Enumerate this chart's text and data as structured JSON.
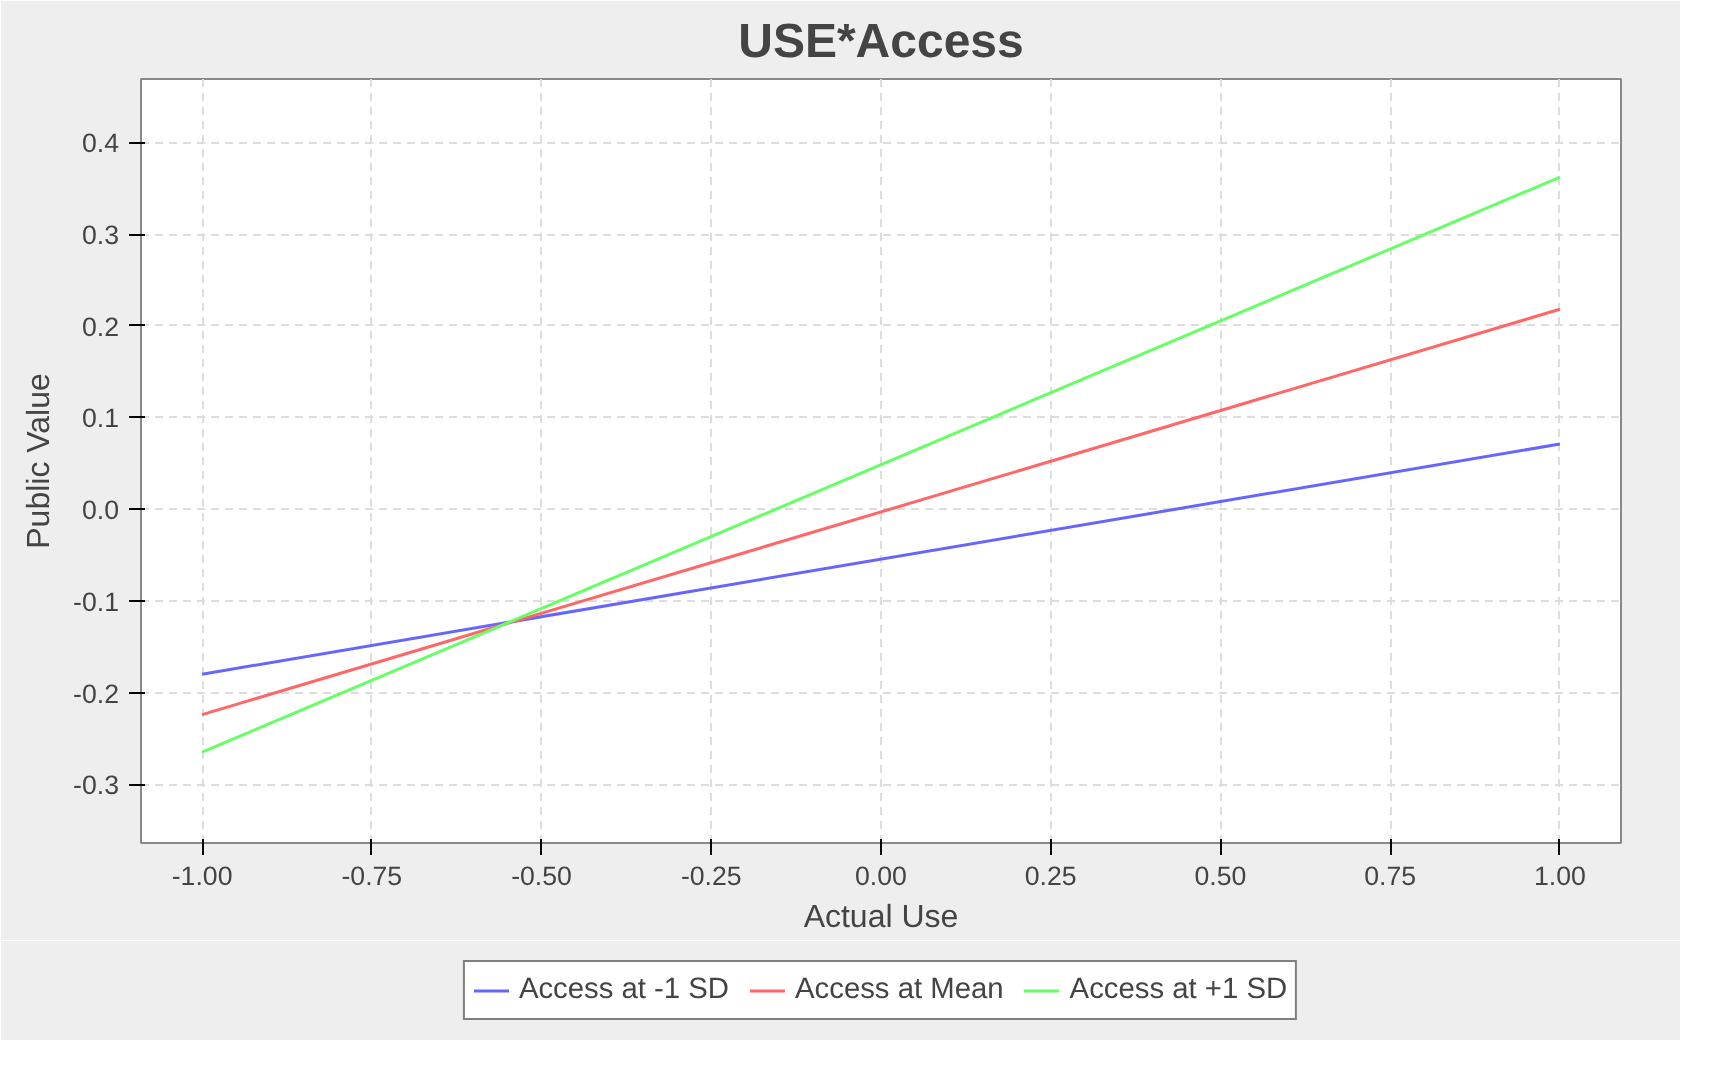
{
  "chart_data": {
    "type": "line",
    "title": "USE*Access",
    "xlabel": "Actual Use",
    "ylabel": "Public Value",
    "x": [
      -1.0,
      1.0
    ],
    "series": [
      {
        "name": "Access at -1 SD",
        "color": "#6666ff",
        "values": [
          -0.18,
          0.071
        ]
      },
      {
        "name": "Access at Mean",
        "color": "#ff6666",
        "values": [
          -0.224,
          0.218
        ]
      },
      {
        "name": "Access at +1 SD",
        "color": "#66ff66",
        "values": [
          -0.265,
          0.362
        ]
      }
    ],
    "xlim": [
      -1.09,
      1.09
    ],
    "ylim": [
      -0.364,
      0.469
    ],
    "xticks": [
      {
        "value": -1,
        "label": "-1.00"
      },
      {
        "value": -0.75,
        "label": "-0.75"
      },
      {
        "value": -0.5,
        "label": "-0.50"
      },
      {
        "value": -0.25,
        "label": "-0.25"
      },
      {
        "value": 0,
        "label": "0.00"
      },
      {
        "value": 0.25,
        "label": "0.25"
      },
      {
        "value": 0.5,
        "label": "0.50"
      },
      {
        "value": 0.75,
        "label": "0.75"
      },
      {
        "value": 1,
        "label": "1.00"
      }
    ],
    "yticks": [
      -0.3,
      -0.2,
      -0.1,
      {
        "value": 0,
        "label": "0.0"
      },
      0.1,
      0.2,
      0.3,
      0.4
    ],
    "grid": true,
    "legend": "bottom",
    "line_style": "solid"
  }
}
